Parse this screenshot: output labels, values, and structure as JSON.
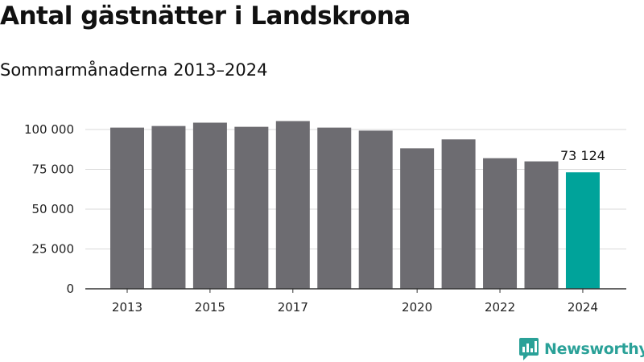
{
  "chart_data": {
    "type": "bar",
    "title": "Antal gästnätter i Landskrona",
    "subtitle": "Sommarmånaderna 2013–2024",
    "categories": [
      "2013",
      "2014",
      "2015",
      "2016",
      "2017",
      "2018",
      "2019",
      "2020",
      "2021",
      "2022",
      "2023",
      "2024"
    ],
    "values": [
      101200,
      102200,
      104300,
      101700,
      105300,
      101200,
      99300,
      88200,
      93800,
      82000,
      80000,
      73124
    ],
    "x_tick_labels": [
      "2013",
      "2015",
      "2017",
      "2020",
      "2022",
      "2024"
    ],
    "y_ticks": [
      0,
      25000,
      50000,
      75000,
      100000
    ],
    "y_tick_labels": [
      "0",
      "25 000",
      "50 000",
      "75 000",
      "100 000"
    ],
    "ylim": [
      0,
      110000
    ],
    "xlabel": "",
    "ylabel": "",
    "grid": true,
    "highlight_index": 11,
    "highlight_label": "73 124",
    "colors": {
      "bar": "#6d6c71",
      "highlight": "#00a39a",
      "grid": "#d9d9d9",
      "axis": "#333333"
    }
  },
  "brand": {
    "name": "Newsworthy",
    "icon": "newsworthy-logo-icon",
    "color": "#2aa198"
  }
}
